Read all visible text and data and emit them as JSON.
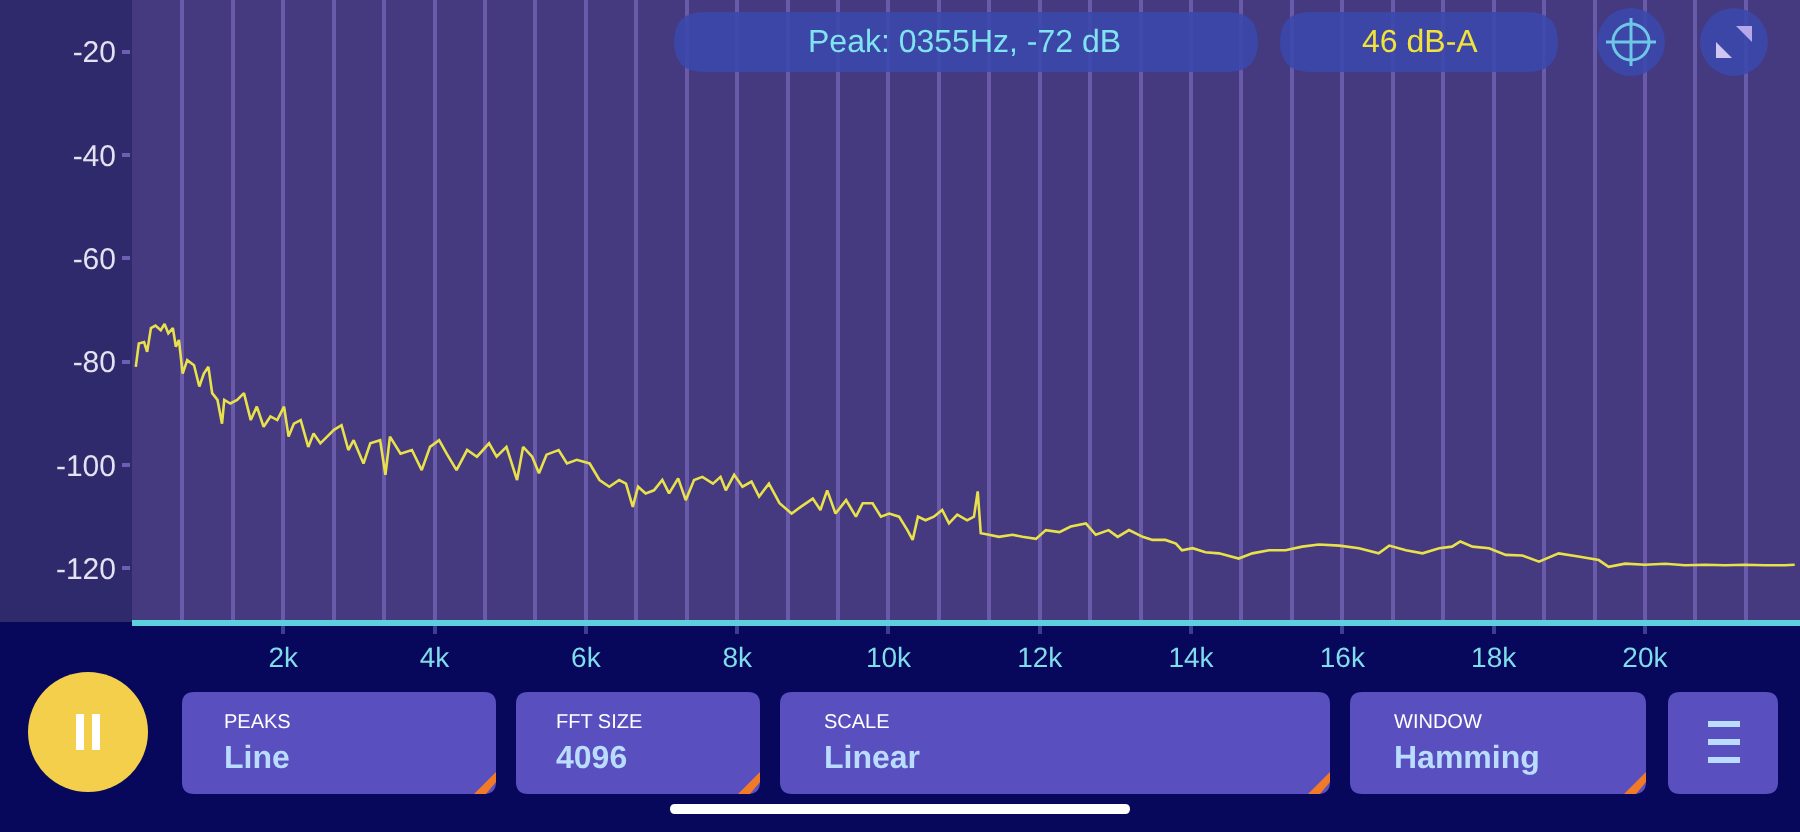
{
  "chart_data": {
    "type": "line",
    "color": "#e8e14b",
    "x": [
      50,
      90,
      160,
      200,
      250,
      310,
      380,
      430,
      480,
      540,
      580,
      620,
      670,
      730,
      820,
      890,
      950,
      1010,
      1060,
      1130,
      1190,
      1220,
      1300,
      1390,
      1480,
      1570,
      1650,
      1740,
      1830,
      1920,
      2010,
      2070,
      2140,
      2230,
      2330,
      2400,
      2490,
      2580,
      2670,
      2770,
      2860,
      2930,
      3060,
      3150,
      3280,
      3350,
      3410,
      3550,
      3700,
      3830,
      3940,
      4060,
      4160,
      4290,
      4430,
      4560,
      4720,
      4820,
      4950,
      5090,
      5170,
      5290,
      5380,
      5480,
      5640,
      5750,
      5880,
      6050,
      6180,
      6310,
      6440,
      6530,
      6620,
      6690,
      6790,
      6900,
      7010,
      7100,
      7220,
      7320,
      7430,
      7540,
      7680,
      7780,
      7850,
      7960,
      8070,
      8190,
      8290,
      8420,
      8560,
      8720,
      8840,
      9000,
      9100,
      9190,
      9300,
      9440,
      9570,
      9660,
      9790,
      9900,
      10010,
      10140,
      10250,
      10320,
      10390,
      10490,
      10600,
      10710,
      10800,
      10910,
      11040,
      11130,
      11180,
      11220,
      11330,
      11460,
      11640,
      11770,
      11950,
      12080,
      12260,
      12410,
      12610,
      12740,
      12910,
      13030,
      13180,
      13360,
      13490,
      13660,
      13800,
      13880,
      14020,
      14190,
      14370,
      14630,
      14810,
      15030,
      15250,
      15470,
      15690,
      15960,
      16220,
      16480,
      16620,
      16840,
      17060,
      17280,
      17450,
      17560,
      17720,
      17940,
      18160,
      18380,
      18600,
      18860,
      19120,
      19390,
      19520,
      19740,
      20000,
      20270,
      20530,
      20800,
      21060,
      21320,
      21590,
      21850,
      21980
    ],
    "values": [
      -81.0,
      -76.5,
      -76.2,
      -78.1,
      -73.5,
      -73.0,
      -73.9,
      -72.7,
      -74.5,
      -73.5,
      -77.1,
      -75.8,
      -82.3,
      -79.7,
      -80.7,
      -84.8,
      -82.3,
      -81.0,
      -86.1,
      -87.4,
      -92.0,
      -87.4,
      -88.1,
      -87.4,
      -86.1,
      -91.3,
      -88.7,
      -92.6,
      -90.6,
      -91.3,
      -88.7,
      -94.5,
      -92.0,
      -91.3,
      -96.5,
      -93.9,
      -95.8,
      -94.5,
      -93.2,
      -92.3,
      -97.1,
      -95.2,
      -99.7,
      -95.8,
      -95.2,
      -101.9,
      -94.5,
      -97.8,
      -97.1,
      -101.0,
      -96.5,
      -95.2,
      -97.8,
      -101.0,
      -97.1,
      -98.4,
      -95.8,
      -98.4,
      -96.5,
      -102.9,
      -96.5,
      -98.4,
      -101.6,
      -98.0,
      -97.1,
      -99.7,
      -99.0,
      -99.7,
      -102.9,
      -104.2,
      -102.9,
      -103.6,
      -108.1,
      -104.2,
      -105.5,
      -104.9,
      -102.9,
      -105.5,
      -102.6,
      -106.8,
      -102.9,
      -102.3,
      -103.6,
      -102.3,
      -104.9,
      -101.9,
      -104.2,
      -103.2,
      -106.1,
      -103.6,
      -107.4,
      -109.4,
      -108.1,
      -106.5,
      -108.7,
      -104.9,
      -109.4,
      -106.8,
      -110.0,
      -107.4,
      -107.4,
      -110.0,
      -109.4,
      -110.0,
      -112.6,
      -114.5,
      -110.0,
      -110.7,
      -110.0,
      -108.7,
      -111.3,
      -109.6,
      -110.7,
      -110.0,
      -105.1,
      -113.2,
      -113.5,
      -113.9,
      -113.5,
      -113.9,
      -114.3,
      -112.6,
      -113.0,
      -111.9,
      -111.3,
      -113.5,
      -112.6,
      -113.9,
      -112.6,
      -113.9,
      -114.5,
      -114.5,
      -115.2,
      -116.5,
      -116.1,
      -116.9,
      -117.1,
      -118.1,
      -117.1,
      -116.5,
      -116.5,
      -115.8,
      -115.4,
      -115.6,
      -116.1,
      -117.1,
      -115.6,
      -116.5,
      -117.1,
      -116.1,
      -115.8,
      -114.8,
      -115.8,
      -116.1,
      -117.4,
      -117.5,
      -118.7,
      -117.1,
      -117.7,
      -118.4,
      -119.7,
      -119.1,
      -119.3,
      -119.1,
      -119.4,
      -119.3,
      -119.4,
      -119.3,
      -119.4,
      -119.4,
      -119.3
    ],
    "xlim": [
      0,
      22050
    ],
    "ylim": [
      -130,
      -10
    ],
    "xticks": [
      {
        "value": 666.7,
        "label": null
      },
      {
        "value": 1333.3,
        "label": null
      },
      {
        "value": 2000,
        "label": "2k"
      },
      {
        "value": 2666.7,
        "label": null
      },
      {
        "value": 3333.3,
        "label": null
      },
      {
        "value": 4000,
        "label": "4k"
      },
      {
        "value": 4666.7,
        "label": null
      },
      {
        "value": 5333.3,
        "label": null
      },
      {
        "value": 6000,
        "label": "6k"
      },
      {
        "value": 6666.7,
        "label": null
      },
      {
        "value": 7333.3,
        "label": null
      },
      {
        "value": 8000,
        "label": "8k"
      },
      {
        "value": 8666.7,
        "label": null
      },
      {
        "value": 9333.3,
        "label": null
      },
      {
        "value": 10000,
        "label": "10k"
      },
      {
        "value": 10666.7,
        "label": null
      },
      {
        "value": 11333.3,
        "label": null
      },
      {
        "value": 12000,
        "label": "12k"
      },
      {
        "value": 12666.7,
        "label": null
      },
      {
        "value": 13333.3,
        "label": null
      },
      {
        "value": 14000,
        "label": "14k"
      },
      {
        "value": 14666.7,
        "label": null
      },
      {
        "value": 15333.3,
        "label": null
      },
      {
        "value": 16000,
        "label": "16k"
      },
      {
        "value": 16666.7,
        "label": null
      },
      {
        "value": 17333.3,
        "label": null
      },
      {
        "value": 18000,
        "label": "18k"
      },
      {
        "value": 18666.7,
        "label": null
      },
      {
        "value": 19333.3,
        "label": null
      },
      {
        "value": 20000,
        "label": "20k"
      },
      {
        "value": 20666.7,
        "label": null
      },
      {
        "value": 21333.3,
        "label": null
      }
    ],
    "yticks": [
      -120,
      -100,
      -80,
      -60,
      -40,
      -20
    ],
    "grid": "x",
    "annotations": [
      "Peak: 0355Hz, -72 dB",
      "46 dB-A",
      "PEAKS",
      "Line",
      "FFT SIZE",
      "4096",
      "SCALE",
      "Linear",
      "WINDOW",
      "Hamming"
    ]
  }
}
